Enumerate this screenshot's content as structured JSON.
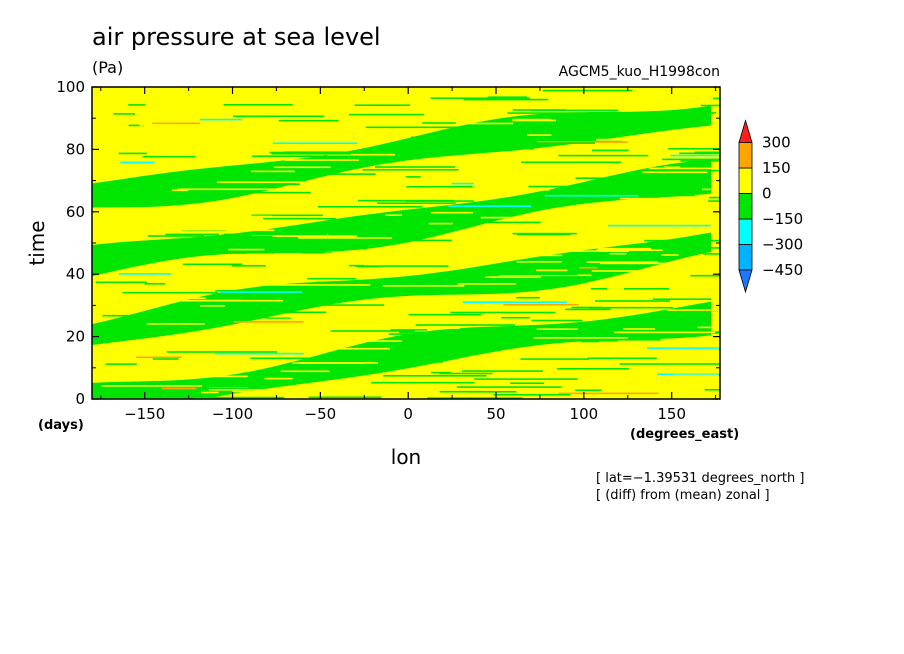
{
  "chart_data": {
    "type": "heatmap",
    "title": "air pressure at sea level",
    "units": "(Pa)",
    "run_name": "AGCM5_kuo_H1998con",
    "xlabel": "lon",
    "xunits": "(degrees_east)",
    "ylabel": "time",
    "yunits": "(days)",
    "xlim": [
      -180,
      177.5
    ],
    "ylim": [
      0,
      100
    ],
    "xticks": [
      -150,
      -100,
      -50,
      0,
      50,
      100,
      150
    ],
    "xtick_labels": [
      "−150",
      "−100",
      "−50",
      "0",
      "50",
      "100",
      "150"
    ],
    "yticks": [
      0,
      20,
      40,
      60,
      80,
      100
    ],
    "ytick_labels": [
      "0",
      "20",
      "40",
      "60",
      "80",
      "100"
    ],
    "notes": [
      "[ lat=−1.39531 degrees_north ]",
      "[ (diff) from (mean) zonal ]"
    ],
    "levels": [
      -450,
      -300,
      -150,
      0,
      150,
      300
    ],
    "level_labels": [
      "−450",
      "−300",
      "−150",
      "0",
      "150",
      "300"
    ],
    "band_colors": [
      "#1e78ff",
      "#00b4ff",
      "#00ffff",
      "#00e600",
      "#ffff00",
      "#ffa500",
      "#ff1e1e"
    ],
    "colorbar_extends": "both",
    "pattern": {
      "description": "zonal anomaly bands tilted eastward with time",
      "bands": [
        {
          "t_at_lon0": 3,
          "sign": "positive"
        },
        {
          "t_at_lon0": 14,
          "sign": "negative"
        },
        {
          "t_at_lon0": 24,
          "sign": "positive"
        },
        {
          "t_at_lon0": 36,
          "sign": "negative"
        },
        {
          "t_at_lon0": 47,
          "sign": "positive"
        },
        {
          "t_at_lon0": 57,
          "sign": "negative"
        },
        {
          "t_at_lon0": 68,
          "sign": "positive"
        },
        {
          "t_at_lon0": 79,
          "sign": "negative"
        },
        {
          "t_at_lon0": 91,
          "sign": "positive"
        }
      ],
      "drift_days_per_360_lon": 28,
      "dominant_range": [
        -150,
        150
      ]
    }
  }
}
